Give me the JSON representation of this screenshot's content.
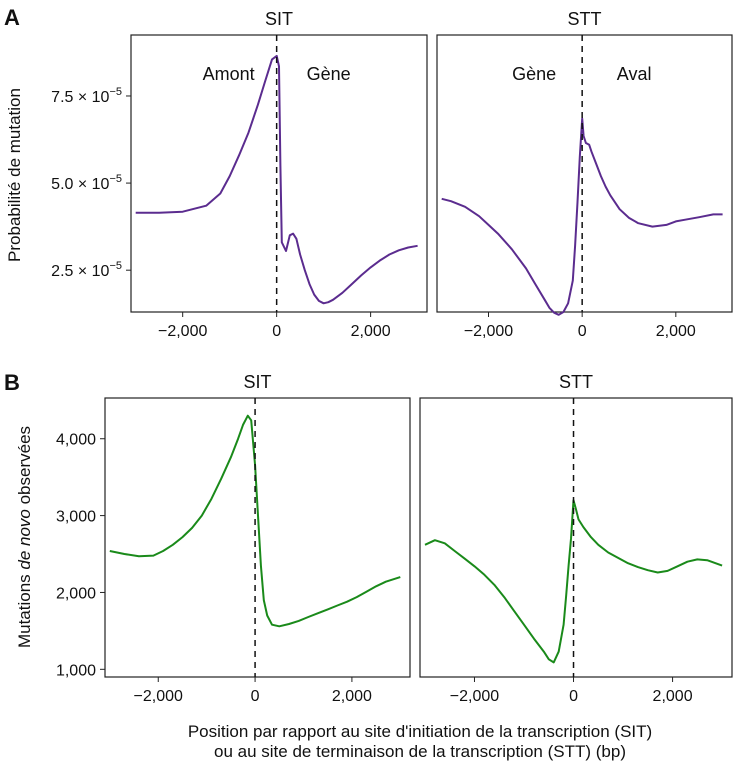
{
  "figure": {
    "panel_a_letter": "A",
    "panel_b_letter": "B",
    "xlabel_line1": "Position par rapport au site d'initiation de la transcription (SIT)",
    "xlabel_line2": "ou au site de terminaison de la transcription (STT) (bp)"
  },
  "chart_data": [
    {
      "type": "line",
      "panel": "A",
      "ylabel": "Probabilité de mutation",
      "color": "#5b2c8f",
      "ylim": [
        1.3e-05,
        9.25e-05
      ],
      "yticks": [
        {
          "value": 2.5e-05,
          "mantissa": "2.5",
          "label": "2.5 × 10",
          "exp": "−5"
        },
        {
          "value": 5e-05,
          "mantissa": "5.0",
          "label": "5.0 × 10",
          "exp": "−5"
        },
        {
          "value": 7.5e-05,
          "mantissa": "7.5",
          "label": "7.5 × 10",
          "exp": "−5"
        }
      ],
      "facets": [
        {
          "title": "SIT",
          "xlim": [
            -3100,
            3200
          ],
          "xticks": [
            -2000,
            0,
            2000
          ],
          "xtick_labels": [
            "−2,000",
            "0",
            "2,000"
          ],
          "annotations": [
            "Amont",
            "Gène"
          ],
          "series": [
            {
              "x": [
                -3000,
                -2500,
                -2000,
                -1500,
                -1200,
                -1000,
                -800,
                -600,
                -400,
                -250,
                -100,
                0,
                50,
                80,
                110,
                200,
                280,
                350,
                420,
                500,
                600,
                700,
                800,
                900,
                1000,
                1100,
                1200,
                1400,
                1600,
                1800,
                2000,
                2200,
                2400,
                2600,
                2800,
                3000
              ],
              "y": [
                4.15e-05,
                4.15e-05,
                4.18e-05,
                4.35e-05,
                4.7e-05,
                5.2e-05,
                5.8e-05,
                6.45e-05,
                7.25e-05,
                7.9e-05,
                8.55e-05,
                8.65e-05,
                8.35e-05,
                5.5e-05,
                3.3e-05,
                3.05e-05,
                3.5e-05,
                3.55e-05,
                3.4e-05,
                2.95e-05,
                2.5e-05,
                2.1e-05,
                1.8e-05,
                1.62e-05,
                1.55e-05,
                1.58e-05,
                1.65e-05,
                1.85e-05,
                2.1e-05,
                2.35e-05,
                2.58e-05,
                2.78e-05,
                2.95e-05,
                3.07e-05,
                3.15e-05,
                3.2e-05
              ]
            }
          ]
        },
        {
          "title": "STT",
          "xlim": [
            -3100,
            3200
          ],
          "xticks": [
            -2000,
            0,
            2000
          ],
          "xtick_labels": [
            "−2,000",
            "0",
            "2,000"
          ],
          "annotations": [
            "Gène",
            "Aval"
          ],
          "series": [
            {
              "x": [
                -3000,
                -2800,
                -2500,
                -2200,
                -2000,
                -1800,
                -1500,
                -1200,
                -1000,
                -800,
                -700,
                -600,
                -500,
                -400,
                -300,
                -200,
                -150,
                -100,
                -50,
                0,
                30,
                80,
                150,
                200,
                300,
                400,
                500,
                600,
                800,
                1000,
                1200,
                1500,
                1800,
                2000,
                2200,
                2500,
                2800,
                3000
              ],
              "y": [
                4.55e-05,
                4.48e-05,
                4.32e-05,
                4.05e-05,
                3.8e-05,
                3.55e-05,
                3.1e-05,
                2.55e-05,
                2.1e-05,
                1.65e-05,
                1.42e-05,
                1.28e-05,
                1.22e-05,
                1.3e-05,
                1.55e-05,
                2.2e-05,
                3.2e-05,
                4.45e-05,
                5.75e-05,
                6.85e-05,
                6.35e-05,
                6.15e-05,
                6.1e-05,
                5.9e-05,
                5.55e-05,
                5.2e-05,
                4.9e-05,
                4.65e-05,
                4.25e-05,
                4e-05,
                3.85e-05,
                3.75e-05,
                3.8e-05,
                3.9e-05,
                3.95e-05,
                4.02e-05,
                4.1e-05,
                4.1e-05
              ]
            }
          ]
        }
      ]
    },
    {
      "type": "line",
      "panel": "B",
      "ylabel_parts": [
        "Mutations ",
        "de novo",
        " observées"
      ],
      "color": "#1a8a1a",
      "ylim": [
        900,
        4530
      ],
      "yticks": [
        1000,
        2000,
        3000,
        4000
      ],
      "ytick_labels": [
        "1,000",
        "2,000",
        "3,000",
        "4,000"
      ],
      "facets": [
        {
          "title": "SIT",
          "xlim": [
            -3100,
            3200
          ],
          "xticks": [
            -2000,
            0,
            2000
          ],
          "xtick_labels": [
            "−2,000",
            "0",
            "2,000"
          ],
          "series": [
            {
              "x": [
                -3000,
                -2700,
                -2400,
                -2100,
                -1900,
                -1700,
                -1500,
                -1300,
                -1100,
                -900,
                -700,
                -500,
                -350,
                -250,
                -150,
                -80,
                0,
                60,
                120,
                180,
                250,
                350,
                500,
                700,
                900,
                1100,
                1300,
                1500,
                1700,
                1900,
                2100,
                2300,
                2500,
                2700,
                3000
              ],
              "y": [
                2540,
                2500,
                2470,
                2480,
                2540,
                2620,
                2720,
                2840,
                3000,
                3220,
                3480,
                3760,
                4000,
                4180,
                4300,
                4240,
                3650,
                3000,
                2350,
                1900,
                1700,
                1580,
                1560,
                1590,
                1630,
                1680,
                1730,
                1780,
                1830,
                1880,
                1940,
                2010,
                2080,
                2140,
                2200
              ]
            }
          ]
        },
        {
          "title": "STT",
          "xlim": [
            -3100,
            3200
          ],
          "xticks": [
            -2000,
            0,
            2000
          ],
          "xtick_labels": [
            "−2,000",
            "0",
            "2,000"
          ],
          "series": [
            {
              "x": [
                -3000,
                -2800,
                -2600,
                -2400,
                -2200,
                -2000,
                -1800,
                -1600,
                -1400,
                -1200,
                -1000,
                -800,
                -600,
                -500,
                -400,
                -300,
                -200,
                -150,
                -100,
                -50,
                0,
                50,
                100,
                200,
                350,
                500,
                700,
                900,
                1100,
                1300,
                1500,
                1700,
                1900,
                2100,
                2300,
                2500,
                2700,
                3000
              ],
              "y": [
                2620,
                2680,
                2640,
                2540,
                2440,
                2340,
                2230,
                2100,
                1940,
                1760,
                1580,
                1400,
                1230,
                1130,
                1090,
                1230,
                1580,
                1950,
                2350,
                2700,
                3200,
                3080,
                2950,
                2850,
                2720,
                2620,
                2520,
                2450,
                2380,
                2330,
                2290,
                2260,
                2280,
                2340,
                2400,
                2430,
                2420,
                2350
              ]
            }
          ]
        }
      ]
    }
  ]
}
